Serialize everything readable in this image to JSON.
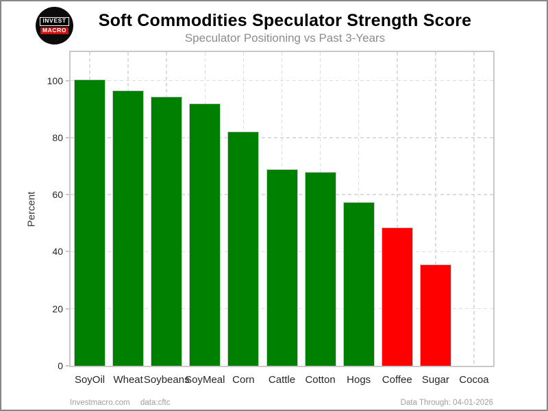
{
  "header": {
    "title": "Soft Commodities Speculator Strength Score",
    "subtitle": "Speculator Positioning vs Past 3-Years",
    "logo": {
      "line1": "INVEST",
      "line2": "MACRO"
    }
  },
  "chart_data": {
    "type": "bar",
    "title": "Soft Commodities Speculator Strength Score",
    "subtitle": "Speculator Positioning vs Past 3-Years",
    "categories": [
      "SoyOil",
      "Wheat",
      "Soybeans",
      "SoyMeal",
      "Corn",
      "Cattle",
      "Cotton",
      "Hogs",
      "Coffee",
      "Sugar",
      "Cocoa"
    ],
    "values": [
      100.3,
      96.5,
      94.5,
      92.0,
      82.1,
      68.9,
      68.0,
      57.4,
      48.4,
      35.6,
      0.0
    ],
    "bar_colors": [
      "#008000",
      "#008000",
      "#008000",
      "#008000",
      "#008000",
      "#008000",
      "#008000",
      "#008000",
      "#ff0000",
      "#ff0000",
      "#008000"
    ],
    "xlabel": "",
    "ylabel": "Percent",
    "yticks": [
      0,
      20,
      40,
      60,
      80,
      100
    ],
    "ylim": [
      0,
      110
    ],
    "grid": "dashed-both-axes",
    "legend": "none",
    "colors": {
      "strong_positive": "#008000",
      "weak_negative": "#ff0000",
      "grid": "#dcdcdc",
      "plot_border": "#c8c8c8"
    }
  },
  "footer": {
    "left": "Investmacro.com",
    "center": "data:cftc",
    "right": "Data Through: 04-01-2026"
  }
}
